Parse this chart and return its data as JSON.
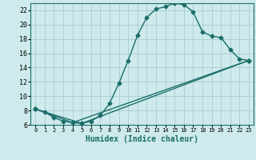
{
  "xlabel": "Humidex (Indice chaleur)",
  "bg_color": "#ceeaec",
  "grid_color": "#aed0d4",
  "line_color": "#1a6e6a",
  "marker": "D",
  "markersize": 2.5,
  "linewidth": 1.0,
  "xlim": [
    -0.5,
    23.5
  ],
  "ylim": [
    6,
    23
  ],
  "xticks": [
    0,
    1,
    2,
    3,
    4,
    5,
    6,
    7,
    8,
    9,
    10,
    11,
    12,
    13,
    14,
    15,
    16,
    17,
    18,
    19,
    20,
    21,
    22,
    23
  ],
  "yticks": [
    6,
    8,
    10,
    12,
    14,
    16,
    18,
    20,
    22
  ],
  "series1": [
    [
      0,
      8.2
    ],
    [
      1,
      7.8
    ],
    [
      2,
      7.0
    ],
    [
      3,
      6.5
    ],
    [
      4,
      6.3
    ],
    [
      5,
      6.2
    ],
    [
      6,
      6.5
    ],
    [
      7,
      7.3
    ],
    [
      8,
      9.0
    ],
    [
      9,
      11.8
    ],
    [
      10,
      15.0
    ],
    [
      11,
      18.5
    ],
    [
      12,
      21.0
    ],
    [
      13,
      22.2
    ],
    [
      14,
      22.5
    ],
    [
      15,
      23.0
    ],
    [
      16,
      22.8
    ],
    [
      17,
      21.8
    ],
    [
      18,
      19.0
    ],
    [
      19,
      18.4
    ],
    [
      20,
      18.2
    ],
    [
      21,
      16.5
    ],
    [
      22,
      15.2
    ],
    [
      23,
      15.0
    ]
  ],
  "series2": [
    [
      0,
      8.2
    ],
    [
      4,
      6.3
    ],
    [
      23,
      15.0
    ]
  ],
  "series3": [
    [
      0,
      8.2
    ],
    [
      5,
      6.2
    ],
    [
      23,
      15.0
    ]
  ]
}
